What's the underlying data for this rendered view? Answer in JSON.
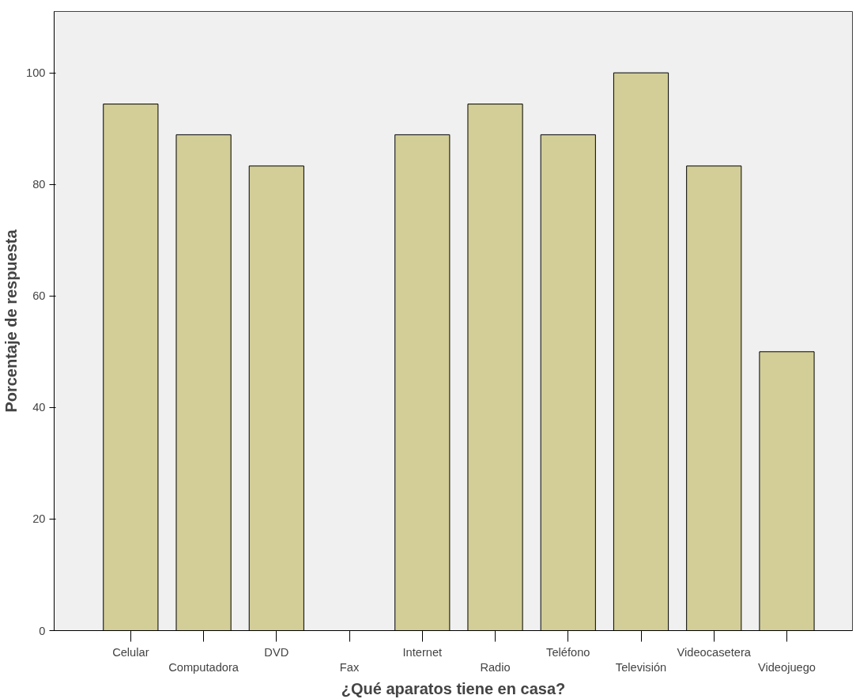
{
  "chart_data": {
    "type": "bar",
    "xlabel": "¿Qué aparatos tiene en casa?",
    "ylabel": "Porcentaje de respuesta",
    "categories": [
      "Celular",
      "Computadora",
      "DVD",
      "Fax",
      "Internet",
      "Radio",
      "Teléfono",
      "Televisión",
      "Videocasetera",
      "Videojuego"
    ],
    "values": [
      94.4,
      88.9,
      83.3,
      0,
      88.9,
      94.4,
      88.9,
      100,
      83.3,
      50
    ],
    "color": "#d3ce97",
    "ylim": [
      0,
      111
    ],
    "yticks": [
      0,
      20,
      40,
      60,
      80,
      100
    ],
    "grid": false
  }
}
